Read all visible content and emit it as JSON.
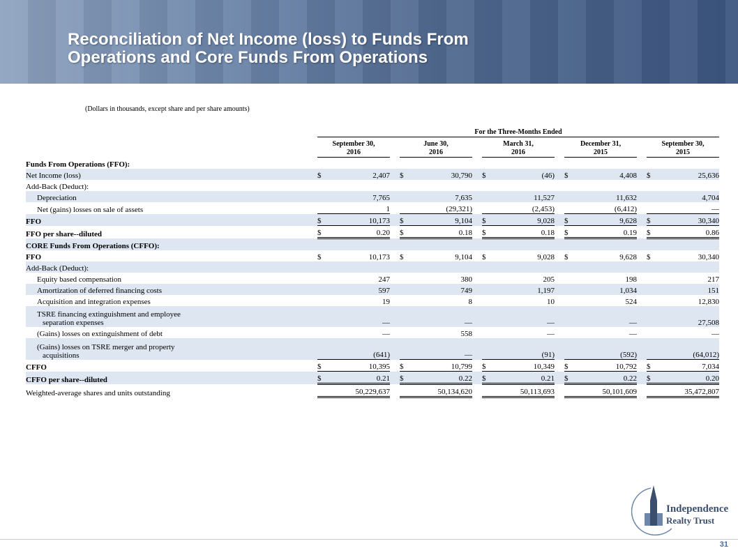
{
  "header": {
    "title_lines": [
      "Reconciliation of Net Income (loss) to Funds From",
      "Operations and Core Funds From Operations"
    ]
  },
  "note": "(Dollars in thousands, except share and per share amounts)",
  "table": {
    "group_header": "For the Three-Months Ended",
    "columns": [
      [
        "September 30,",
        "2016"
      ],
      [
        "June 30,",
        "2016"
      ],
      [
        "March 31,",
        "2016"
      ],
      [
        "December 31,",
        "2015"
      ],
      [
        "September 30,",
        "2015"
      ]
    ],
    "rows": [
      {
        "label": [
          "Funds From Operations (FFO):"
        ]
      },
      {
        "label": [
          "Net Income (loss)"
        ],
        "currency": [
          "$",
          "$",
          "$",
          "$",
          "$"
        ],
        "values": [
          "2,407",
          "30,790",
          "(46)",
          "4,408",
          "25,636"
        ]
      },
      {
        "label": [
          "Add-Back (Deduct):"
        ]
      },
      {
        "label": [
          "Depreciation"
        ],
        "values": [
          "7,765",
          "7,635",
          "11,527",
          "11,632",
          "4,704"
        ]
      },
      {
        "label": [
          "Net (gains) losses on sale of assets"
        ],
        "values": [
          "1",
          "(29,321)",
          "(2,453)",
          "(6,412)",
          "—"
        ]
      },
      {
        "label": [
          "FFO"
        ],
        "currency": [
          "$",
          "$",
          "$",
          "$",
          "$"
        ],
        "values": [
          "10,173",
          "9,104",
          "9,028",
          "9,628",
          "30,340"
        ]
      },
      {
        "label": [
          "FFO per share--diluted"
        ],
        "currency": [
          "$",
          "$",
          "$",
          "$",
          "$"
        ],
        "values": [
          "0.20",
          "0.18",
          "0.18",
          "0.19",
          "0.86"
        ]
      },
      {
        "label": [
          "CORE Funds From Operations (CFFO):"
        ]
      },
      {
        "label": [
          "FFO"
        ],
        "currency": [
          "$",
          "$",
          "$",
          "$",
          "$"
        ],
        "values": [
          "10,173",
          "9,104",
          "9,028",
          "9,628",
          "30,340"
        ]
      },
      {
        "label": [
          "Add-Back (Deduct):"
        ]
      },
      {
        "label": [
          "Equity based compensation"
        ],
        "values": [
          "247",
          "380",
          "205",
          "198",
          "217"
        ]
      },
      {
        "label": [
          "Amortization of deferred financing costs"
        ],
        "values": [
          "597",
          "749",
          "1,197",
          "1,034",
          "151"
        ]
      },
      {
        "label": [
          "Acquisition and integration expenses"
        ],
        "values": [
          "19",
          "8",
          "10",
          "524",
          "12,830"
        ]
      },
      {
        "label": [
          "TSRE financing extinguishment and employee",
          "separation expenses"
        ],
        "values": [
          "—",
          "—",
          "—",
          "—",
          "27,508"
        ]
      },
      {
        "label": [
          "(Gains) losses on extinguishment of debt"
        ],
        "values": [
          "—",
          "558",
          "—",
          "—",
          "—"
        ]
      },
      {
        "label": [
          "(Gains) losses on TSRE merger and property",
          "acquisitions"
        ],
        "values": [
          "(641)",
          "—",
          "(91)",
          "(592)",
          "(64,012)"
        ]
      },
      {
        "label": [
          "CFFO"
        ],
        "currency": [
          "$",
          "$",
          "$",
          "$",
          "$"
        ],
        "values": [
          "10,395",
          "10,799",
          "10,349",
          "10,792",
          "7,034"
        ]
      },
      {
        "label": [
          "CFFO per share--diluted"
        ],
        "currency": [
          "$",
          "$",
          "$",
          "$",
          "$"
        ],
        "values": [
          "0.21",
          "0.22",
          "0.21",
          "0.22",
          "0.20"
        ]
      },
      {
        "label": [
          "Weighted-average shares and units outstanding"
        ],
        "values": [
          "50,229,637",
          "50,134,620",
          "50,113,693",
          "50,101,609",
          "35,472,807"
        ]
      }
    ]
  },
  "logo": {
    "line1": "Independence",
    "line2": "Realty Trust"
  },
  "page_number": "31"
}
